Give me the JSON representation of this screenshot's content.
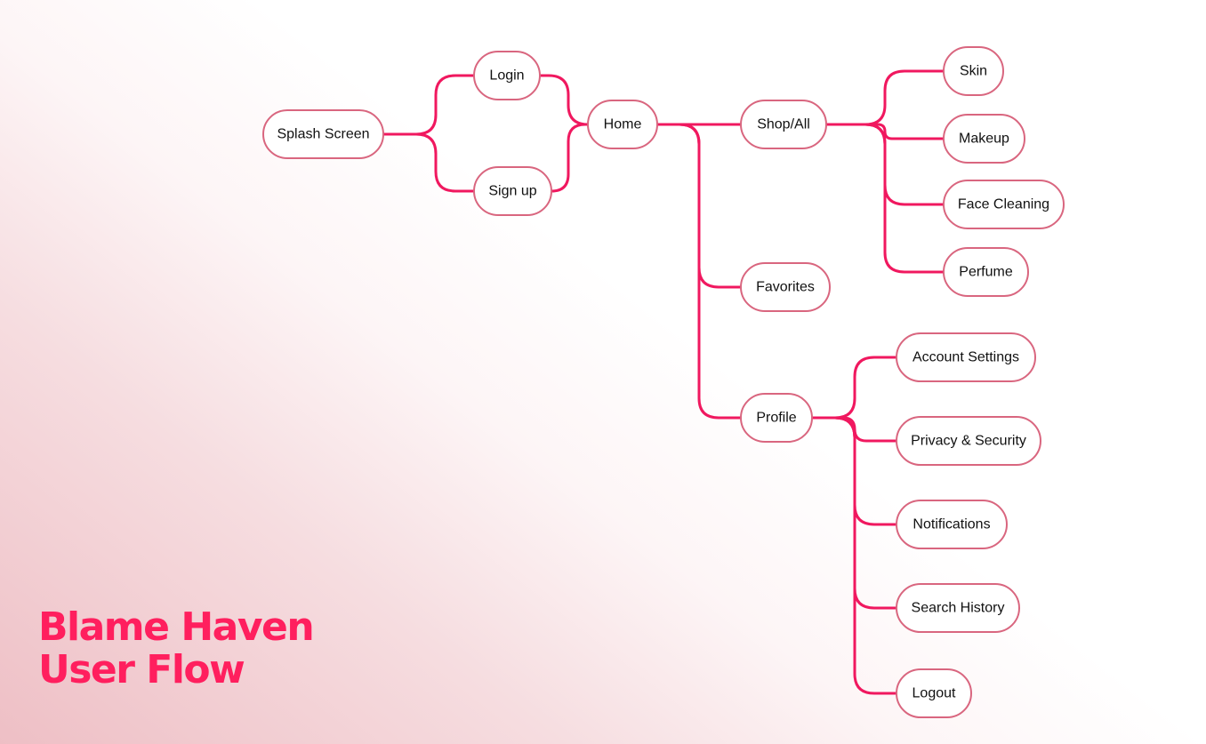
{
  "accent_color": "#ff1f5e",
  "connector_color": "#f0185f",
  "node_border_color": "#d9667f",
  "title": {
    "line1": "Blame Haven",
    "line2": "User Flow"
  },
  "flow": {
    "nodes": [
      {
        "id": "splash",
        "label": "Splash Screen"
      },
      {
        "id": "login",
        "label": "Login"
      },
      {
        "id": "signup",
        "label": "Sign up"
      },
      {
        "id": "home",
        "label": "Home"
      },
      {
        "id": "shop",
        "label": "Shop/All"
      },
      {
        "id": "favorites",
        "label": "Favorites"
      },
      {
        "id": "profile",
        "label": "Profile"
      },
      {
        "id": "skin",
        "label": "Skin"
      },
      {
        "id": "makeup",
        "label": "Makeup"
      },
      {
        "id": "face-cleaning",
        "label": "Face Cleaning"
      },
      {
        "id": "perfume",
        "label": "Perfume"
      },
      {
        "id": "account-settings",
        "label": "Account Settings"
      },
      {
        "id": "privacy-security",
        "label": "Privacy & Security"
      },
      {
        "id": "notifications",
        "label": "Notifications"
      },
      {
        "id": "search-history",
        "label": "Search History"
      },
      {
        "id": "logout",
        "label": "Logout"
      }
    ],
    "edges": [
      {
        "from": "splash",
        "to": "login"
      },
      {
        "from": "splash",
        "to": "signup"
      },
      {
        "from": "login",
        "to": "home"
      },
      {
        "from": "signup",
        "to": "home"
      },
      {
        "from": "home",
        "to": "shop"
      },
      {
        "from": "home",
        "to": "favorites"
      },
      {
        "from": "home",
        "to": "profile"
      },
      {
        "from": "shop",
        "to": "skin"
      },
      {
        "from": "shop",
        "to": "makeup"
      },
      {
        "from": "shop",
        "to": "face-cleaning"
      },
      {
        "from": "shop",
        "to": "perfume"
      },
      {
        "from": "profile",
        "to": "account-settings"
      },
      {
        "from": "profile",
        "to": "privacy-security"
      },
      {
        "from": "profile",
        "to": "notifications"
      },
      {
        "from": "profile",
        "to": "search-history"
      },
      {
        "from": "profile",
        "to": "logout"
      }
    ]
  }
}
